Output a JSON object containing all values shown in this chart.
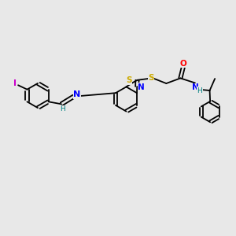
{
  "bg_color": "#e8e8e8",
  "bond_color": "#000000",
  "atom_colors": {
    "I": "#cc00cc",
    "N": "#0000ff",
    "S": "#ccaa00",
    "O": "#ff0000",
    "H": "#008080",
    "C": "#000000"
  },
  "figsize": [
    3.0,
    3.0
  ],
  "dpi": 100
}
